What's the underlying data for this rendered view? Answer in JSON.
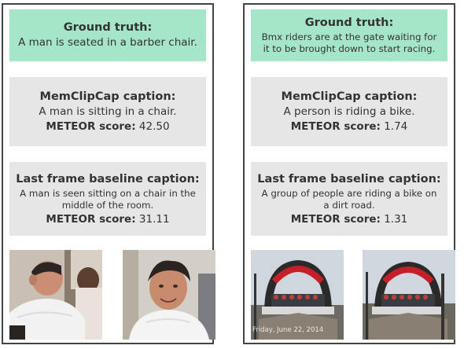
{
  "panels": [
    {
      "ground_truth": {
        "title": "Ground truth:",
        "text": "A man is seated in a barber chair."
      },
      "memclipcap": {
        "title": "MemClipCap caption:",
        "text": "A man is sitting in a chair.",
        "score_label": "METEOR score:",
        "score_value": "42.50"
      },
      "baseline": {
        "title": "Last frame baseline caption:",
        "text": "A man is seen sitting on a chair in the middle of the room.",
        "score_label": "METEOR score:",
        "score_value": "31.11"
      }
    },
    {
      "ground_truth": {
        "title": "Ground truth:",
        "text": "Bmx riders are at the gate waiting for it to be brought down to start racing."
      },
      "memclipcap": {
        "title": "MemClipCap caption:",
        "text": "A person is riding a bike.",
        "score_label": "METEOR score:",
        "score_value": "1.74"
      },
      "baseline": {
        "title": "Last frame baseline caption:",
        "text": "A group of people are riding a bike on a dirt road.",
        "score_label": "METEOR score:",
        "score_value": "1.31"
      },
      "frame_timestamp": "Friday, June 22, 2014"
    }
  ],
  "colors": {
    "ground_truth_bg": "#a6e6c8",
    "caption_bg": "#e6e6e6",
    "panel_border": "#444444"
  }
}
